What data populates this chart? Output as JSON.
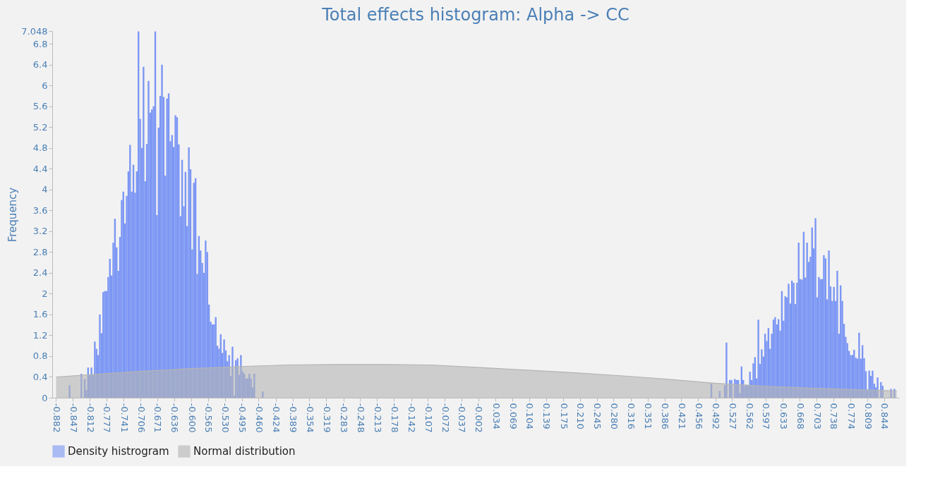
{
  "chart_data": {
    "type": "histogram",
    "title": "Total effects histogram: Alpha -> CC",
    "ylabel": "Frequency",
    "legend": "bottom",
    "grid": false,
    "xlim": [
      -0.89,
      0.875
    ],
    "ylim": [
      0,
      7.048
    ],
    "xticks": [
      -0.882,
      -0.847,
      -0.812,
      -0.777,
      -0.741,
      -0.706,
      -0.671,
      -0.636,
      {
        "value": -0.6,
        "label": "-0.600"
      },
      -0.565,
      {
        "value": -0.53,
        "label": "-0.530"
      },
      -0.495,
      {
        "value": -0.46,
        "label": "-0.460"
      },
      -0.424,
      -0.389,
      -0.354,
      -0.319,
      -0.283,
      -0.248,
      -0.213,
      -0.178,
      -0.142,
      -0.107,
      -0.072,
      -0.037,
      -0.002,
      0.034,
      0.069,
      0.104,
      0.139,
      0.175,
      {
        "value": 0.21,
        "label": "0.210"
      },
      0.245,
      {
        "value": 0.28,
        "label": "0.280"
      },
      0.316,
      0.351,
      0.386,
      0.421,
      0.456,
      0.492,
      0.527,
      0.562,
      0.597,
      0.633,
      0.668,
      0.703,
      0.738,
      0.774,
      0.809,
      0.844
    ],
    "yticks": [
      0,
      0.4,
      0.8,
      1.2,
      1.6,
      2,
      2.4,
      2.8,
      3.2,
      3.6,
      4,
      4.4,
      4.8,
      5.2,
      5.6,
      6,
      6.4,
      6.8,
      7.048
    ],
    "series": [
      {
        "name": "Density histrogram",
        "color": "#7b96f4",
        "bins": [
          -0.8555,
          -0.852,
          -0.831,
          -0.8275,
          -0.824,
          -0.8205,
          -0.817,
          -0.8135,
          -0.81,
          -0.8065,
          -0.803,
          -0.7995,
          -0.796,
          -0.7925,
          -0.789,
          -0.7855,
          -0.782,
          -0.7785,
          -0.775,
          -0.7715,
          -0.768,
          -0.7645,
          -0.761,
          -0.7575,
          -0.754,
          -0.7505,
          -0.747,
          -0.7435,
          -0.74,
          -0.7365,
          -0.733,
          -0.7295,
          -0.726,
          -0.7225,
          -0.719,
          -0.7155,
          -0.712,
          -0.7085,
          -0.705,
          -0.7015,
          -0.698,
          -0.6945,
          -0.691,
          -0.6875,
          -0.684,
          -0.6805,
          -0.677,
          -0.6735,
          -0.67,
          -0.6665,
          -0.663,
          -0.6595,
          -0.656,
          -0.6525,
          -0.649,
          -0.6455,
          -0.642,
          -0.6385,
          -0.635,
          -0.6315,
          -0.628,
          -0.6245,
          -0.621,
          -0.6175,
          -0.614,
          -0.6105,
          -0.607,
          -0.6035,
          -0.6,
          -0.5965,
          -0.593,
          -0.5895,
          -0.586,
          -0.5825,
          -0.579,
          -0.5755,
          -0.572,
          -0.5685,
          -0.565,
          -0.5615,
          -0.558,
          -0.5545,
          -0.551,
          -0.5475,
          -0.544,
          -0.5405,
          -0.537,
          -0.5335,
          -0.53,
          -0.5265,
          -0.523,
          -0.5195,
          -0.516,
          -0.5125,
          -0.509,
          -0.5055,
          -0.502,
          -0.4985,
          -0.495,
          -0.4915,
          -0.488,
          -0.4845,
          -0.481,
          -0.4775,
          -0.474,
          -0.4705,
          -0.467,
          -0.453,
          -0.4495,
          0.482,
          0.4855,
          0.4995,
          0.503,
          0.51,
          0.5135,
          0.517,
          0.5205,
          0.524,
          0.5275,
          0.531,
          0.5345,
          0.538,
          0.5415,
          0.545,
          0.5485,
          0.552,
          0.5555,
          0.559,
          0.5625,
          0.566,
          0.5695,
          0.573,
          0.5765,
          0.58,
          0.5835,
          0.587,
          0.5905,
          0.594,
          0.5975,
          0.601,
          0.6045,
          0.608,
          0.6115,
          0.615,
          0.6185,
          0.622,
          0.6255,
          0.629,
          0.6325,
          0.636,
          0.6395,
          0.643,
          0.6465,
          0.65,
          0.6535,
          0.657,
          0.6605,
          0.664,
          0.6675,
          0.671,
          0.6745,
          0.678,
          0.6815,
          0.685,
          0.6885,
          0.692,
          0.6955,
          0.699,
          0.7025,
          0.706,
          0.7095,
          0.713,
          0.7165,
          0.72,
          0.7235,
          0.727,
          0.7305,
          0.734,
          0.7375,
          0.741,
          0.7445,
          0.748,
          0.7515,
          0.755,
          0.7585,
          0.762,
          0.7655,
          0.769,
          0.7725,
          0.776,
          0.7795,
          0.783,
          0.7865,
          0.79,
          0.7935,
          0.797,
          0.8005,
          0.804,
          0.8075,
          0.811,
          0.8145,
          0.818,
          0.8215,
          0.825,
          0.8285,
          0.832,
          0.8355,
          0.839,
          0.8425,
          0.8565,
          0.86,
          0.8635,
          0.867
        ],
        "values": [
          0.24,
          0,
          0.46,
          0,
          0.36,
          0.15,
          0.58,
          0.44,
          0.58,
          0.44,
          1.08,
          0.94,
          0.82,
          1.6,
          1.24,
          2.03,
          2.05,
          2.05,
          2.32,
          2.67,
          2.35,
          2.98,
          3.44,
          2.89,
          2.44,
          3.09,
          3.8,
          3.96,
          3.35,
          3.88,
          4.35,
          4.86,
          3.96,
          4.48,
          3.94,
          4.35,
          7.04,
          5.36,
          4.8,
          6.36,
          4.16,
          4.88,
          6.09,
          5.48,
          5.54,
          5.6,
          7.04,
          3.51,
          5.19,
          5.8,
          6.4,
          5.78,
          4.27,
          5.75,
          5.85,
          4.93,
          5.05,
          4.82,
          5.43,
          5.39,
          4.87,
          3.49,
          4.57,
          3.68,
          4.34,
          3.3,
          4.81,
          4.39,
          2.85,
          4.13,
          4.22,
          2.38,
          3.11,
          2.83,
          2.59,
          2.4,
          3.02,
          2.8,
          1.79,
          1.46,
          1.41,
          1.41,
          1.55,
          1.0,
          0.94,
          1.22,
          0.86,
          1.12,
          0.91,
          0.7,
          0.82,
          0.42,
          0.98,
          0.04,
          0.72,
          0.76,
          0.44,
          0.82,
          0.51,
          0.46,
          0.37,
          0.37,
          0.46,
          0.37,
          0.2,
          0.46,
          0,
          0.12,
          0,
          0.27,
          0,
          0.13,
          0,
          0.24,
          1.06,
          0,
          0.34,
          0.34,
          0,
          0.36,
          0.34,
          0.34,
          0.09,
          0.6,
          0.34,
          0.23,
          0.25,
          0.24,
          0.5,
          0.34,
          0.66,
          0.78,
          0.37,
          1.5,
          0.65,
          0.93,
          0.79,
          1.23,
          1.09,
          1.34,
          0.94,
          1.23,
          1.5,
          1.55,
          1.41,
          1.51,
          1.29,
          2.05,
          1.48,
          1.95,
          1.93,
          2.19,
          1.81,
          2.25,
          2.21,
          1.8,
          2.21,
          2.98,
          2.28,
          2.27,
          3.19,
          2.31,
          2.98,
          2.61,
          2.71,
          3.27,
          2.87,
          3.45,
          1.93,
          2.32,
          2.28,
          2.28,
          2.74,
          2.68,
          1.89,
          2.83,
          2.14,
          1.86,
          2.13,
          1.86,
          2.44,
          1.23,
          2.16,
          1.86,
          1.42,
          1.17,
          1.05,
          0.9,
          0.82,
          0.82,
          0.92,
          0.77,
          0.75,
          1.25,
          0.75,
          1.01,
          0.76,
          0.51,
          0.16,
          0.52,
          0.42,
          0.52,
          0.27,
          0.2,
          0.39,
          0,
          0.3,
          0.23,
          0,
          0.17,
          0,
          0.17
        ]
      },
      {
        "name": "Normal distribution",
        "type": "area",
        "color": "#b4b4b4",
        "x": [
          -0.882,
          -0.8,
          -0.7,
          -0.6,
          -0.5,
          -0.4,
          -0.3,
          -0.25,
          -0.2,
          -0.1,
          0,
          0.1,
          0.2,
          0.3,
          0.4,
          0.49,
          0.6,
          0.7,
          0.8,
          0.87
        ],
        "values": [
          0.4,
          0.45,
          0.51,
          0.56,
          0.6,
          0.63,
          0.64,
          0.64,
          0.64,
          0.63,
          0.58,
          0.53,
          0.48,
          0.42,
          0.35,
          0.28,
          0.22,
          0.18,
          0.15,
          0.13
        ]
      }
    ]
  }
}
